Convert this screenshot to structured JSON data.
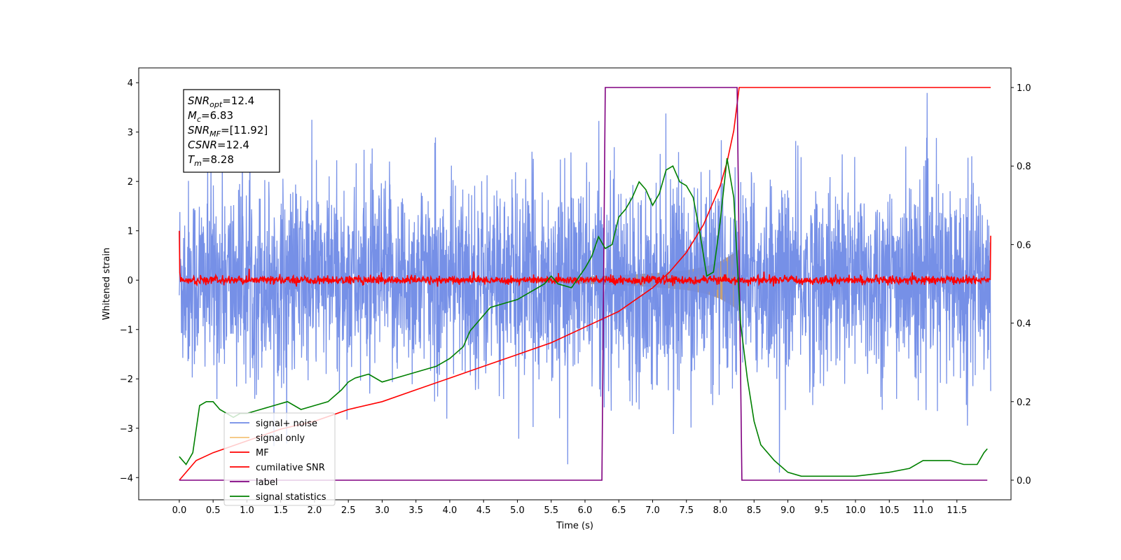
{
  "chart_data": {
    "type": "line",
    "title": "",
    "xlabel": "Time (s)",
    "ylabel": "Whitened strain",
    "y2label": "",
    "xlim": [
      -0.6,
      12.3
    ],
    "ylim": [
      -4.45,
      4.3
    ],
    "y2lim": [
      -0.05,
      1.05
    ],
    "xticks": [
      0.0,
      0.5,
      1.0,
      1.5,
      2.0,
      2.5,
      3.0,
      3.5,
      4.0,
      4.5,
      5.0,
      5.5,
      6.0,
      6.5,
      7.0,
      7.5,
      8.0,
      8.5,
      9.0,
      9.5,
      10.0,
      10.5,
      11.0,
      11.5
    ],
    "xtick_labels": [
      "0.0",
      "0.5",
      "1.0",
      "1.5",
      "2.0",
      "2.5",
      "3.0",
      "3.5",
      "4.0",
      "4.5",
      "5.0",
      "5.5",
      "6.0",
      "6.5",
      "7.0",
      "7.5",
      "8.0",
      "8.5",
      "9.0",
      "9.5",
      "10.0",
      "10.5",
      "11.0",
      "11.5"
    ],
    "yticks": [
      -4,
      -3,
      -2,
      -1,
      0,
      1,
      2,
      3,
      4
    ],
    "ytick_labels": [
      "−4",
      "−3",
      "−2",
      "−1",
      "0",
      "1",
      "2",
      "3",
      "4"
    ],
    "y2ticks": [
      0.0,
      0.2,
      0.4,
      0.6,
      0.8,
      1.0
    ],
    "y2tick_labels": [
      "0.0",
      "0.2",
      "0.4",
      "0.6",
      "0.8",
      "1.0"
    ],
    "grid": false,
    "legend_position": "lower-left",
    "series": [
      {
        "name": "signal+ noise",
        "axis": "left",
        "color": "#6f8ae6",
        "kind": "noise",
        "x_range": [
          0.0,
          12.0
        ],
        "typical_amplitude": 1.6,
        "peak_amplitude": 3.9
      },
      {
        "name": "signal only",
        "axis": "left",
        "color": "#f5c27a",
        "kind": "chirp",
        "x_range": [
          0.0,
          8.28
        ],
        "amplitude_envelope": [
          [
            0.0,
            0.0
          ],
          [
            5.5,
            0.05
          ],
          [
            6.5,
            0.1
          ],
          [
            7.0,
            0.14
          ],
          [
            7.5,
            0.2
          ],
          [
            7.8,
            0.28
          ],
          [
            8.0,
            0.38
          ],
          [
            8.15,
            0.5
          ],
          [
            8.28,
            0.62
          ]
        ]
      },
      {
        "name": "MF",
        "axis": "left",
        "color": "#ff0000",
        "kind": "noise",
        "x_range": [
          0.0,
          12.0
        ],
        "typical_amplitude": 0.07,
        "peak_amplitude": 0.35,
        "endpoints": [
          [
            0.0,
            1.0
          ],
          [
            12.0,
            0.9
          ]
        ]
      },
      {
        "name": "cumilative SNR",
        "axis": "right",
        "color": "#ff0000",
        "x": [
          0.0,
          0.25,
          0.5,
          1.0,
          1.5,
          2.0,
          2.5,
          3.0,
          3.5,
          4.0,
          4.5,
          5.0,
          5.5,
          6.0,
          6.5,
          7.0,
          7.25,
          7.5,
          7.75,
          8.0,
          8.1,
          8.2,
          8.28,
          8.5,
          9.0,
          10.0,
          11.0,
          12.0
        ],
        "values": [
          0.0,
          0.05,
          0.07,
          0.1,
          0.13,
          0.15,
          0.18,
          0.2,
          0.23,
          0.26,
          0.29,
          0.32,
          0.35,
          0.39,
          0.43,
          0.49,
          0.53,
          0.58,
          0.65,
          0.75,
          0.81,
          0.89,
          1.0,
          1.0,
          1.0,
          1.0,
          1.0,
          1.0
        ]
      },
      {
        "name": "label",
        "axis": "right",
        "color": "#800080",
        "x": [
          0.0,
          6.25,
          6.3,
          8.25,
          8.32,
          11.95
        ],
        "values": [
          0.0,
          0.0,
          1.0,
          1.0,
          0.0,
          0.0
        ]
      },
      {
        "name": "signal statistics",
        "axis": "right",
        "color": "#008000",
        "x": [
          0.0,
          0.1,
          0.2,
          0.3,
          0.4,
          0.5,
          0.6,
          0.7,
          0.8,
          0.9,
          1.0,
          1.2,
          1.4,
          1.6,
          1.8,
          2.0,
          2.2,
          2.4,
          2.5,
          2.6,
          2.8,
          3.0,
          3.2,
          3.4,
          3.6,
          3.8,
          4.0,
          4.2,
          4.3,
          4.4,
          4.5,
          4.6,
          4.8,
          5.0,
          5.2,
          5.4,
          5.5,
          5.6,
          5.8,
          6.0,
          6.1,
          6.2,
          6.3,
          6.4,
          6.5,
          6.6,
          6.7,
          6.8,
          6.9,
          7.0,
          7.1,
          7.2,
          7.3,
          7.4,
          7.5,
          7.6,
          7.7,
          7.8,
          7.9,
          8.0,
          8.1,
          8.2,
          8.25,
          8.3,
          8.4,
          8.5,
          8.6,
          8.8,
          9.0,
          9.2,
          9.5,
          10.0,
          10.5,
          10.8,
          11.0,
          11.4,
          11.6,
          11.8,
          11.9,
          11.95
        ],
        "values": [
          0.06,
          0.04,
          0.07,
          0.19,
          0.2,
          0.2,
          0.18,
          0.17,
          0.16,
          0.17,
          0.17,
          0.18,
          0.19,
          0.2,
          0.18,
          0.19,
          0.2,
          0.23,
          0.25,
          0.26,
          0.27,
          0.25,
          0.26,
          0.27,
          0.28,
          0.29,
          0.31,
          0.34,
          0.38,
          0.4,
          0.42,
          0.44,
          0.45,
          0.46,
          0.48,
          0.5,
          0.52,
          0.5,
          0.49,
          0.54,
          0.57,
          0.62,
          0.59,
          0.6,
          0.67,
          0.69,
          0.72,
          0.76,
          0.74,
          0.7,
          0.73,
          0.79,
          0.8,
          0.76,
          0.75,
          0.72,
          0.63,
          0.52,
          0.53,
          0.66,
          0.82,
          0.72,
          0.56,
          0.4,
          0.26,
          0.15,
          0.09,
          0.05,
          0.02,
          0.01,
          0.01,
          0.01,
          0.02,
          0.03,
          0.05,
          0.05,
          0.04,
          0.04,
          0.07,
          0.08
        ]
      }
    ],
    "annotation": {
      "lines": [
        {
          "base": "SNR",
          "sub": "opt",
          "value": "=12.4"
        },
        {
          "base": "M",
          "sub": "c",
          "value": "=6.83"
        },
        {
          "base": "SNR",
          "sub": "MF",
          "value": "=[11.92]"
        },
        {
          "base": "CSNR",
          "sub": "",
          "value": "=12.4"
        },
        {
          "base": "T",
          "sub": "m",
          "value": "=8.28"
        }
      ]
    }
  }
}
